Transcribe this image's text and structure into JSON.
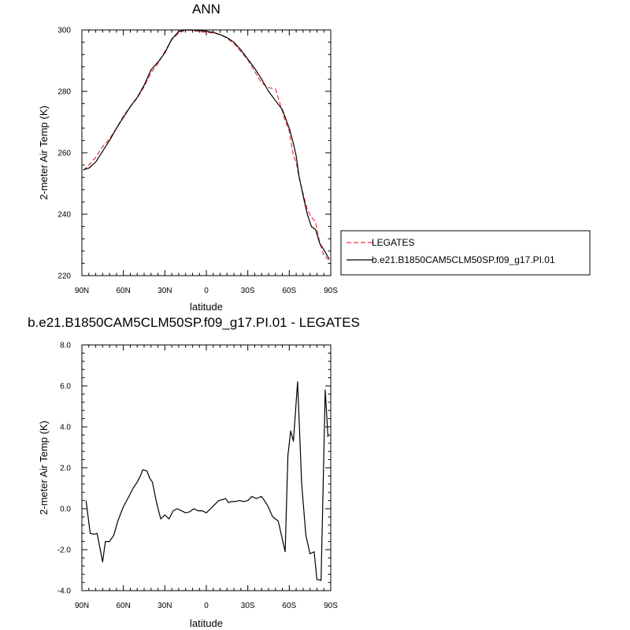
{
  "chart_data": [
    {
      "type": "line",
      "title": "ANN",
      "xlabel": "latitude",
      "ylabel": "2-meter Air Temp (K)",
      "xlim": [
        90,
        -90
      ],
      "ylim": [
        220,
        300
      ],
      "x_ticks": [
        90,
        60,
        30,
        0,
        -30,
        -60,
        -90
      ],
      "x_tick_labels": [
        "90N",
        "60N",
        "30N",
        "0",
        "30S",
        "60S",
        "90S"
      ],
      "y_ticks": [
        220,
        240,
        260,
        280,
        300
      ],
      "y_tick_labels": [
        "220",
        "240",
        "260",
        "280",
        "300"
      ],
      "legend": {
        "placement": "outside-right"
      },
      "series": [
        {
          "name": "LEGATES",
          "color": "#e8383d",
          "dash": "dashed",
          "x": [
            89,
            85,
            80,
            75,
            70,
            65,
            60,
            55,
            50,
            45,
            40,
            35,
            30,
            25,
            20,
            15,
            10,
            5,
            0,
            -5,
            -10,
            -15,
            -20,
            -25,
            -30,
            -35,
            -40,
            -45,
            -50,
            -54,
            -57,
            -60,
            -63,
            -65,
            -67,
            -70,
            -73,
            -76,
            -79,
            -82,
            -85,
            -88,
            -89
          ],
          "y": [
            254.2,
            256,
            258.5,
            262,
            264.5,
            268,
            272,
            275,
            277.8,
            281.5,
            286,
            289,
            293,
            296.8,
            299,
            300,
            299.8,
            299.4,
            299.2,
            299,
            298.5,
            297.3,
            295.5,
            293,
            290.2,
            286.5,
            282.7,
            281.2,
            280.8,
            275,
            270.5,
            267,
            259,
            257,
            252,
            246.8,
            241.5,
            239,
            237.5,
            230.7,
            226.5,
            225.3,
            225.2
          ]
        },
        {
          "name": "b.e21.B1850CAM5CLM50SP.f09_g17.PI.01",
          "color": "#000000",
          "dash": "solid",
          "x": [
            89,
            85,
            80,
            75,
            70,
            65,
            60,
            55,
            50,
            45,
            40,
            35,
            30,
            25,
            20,
            15,
            10,
            5,
            0,
            -5,
            -10,
            -15,
            -20,
            -25,
            -30,
            -35,
            -40,
            -45,
            -50,
            -55,
            -60,
            -63,
            -65,
            -67,
            -70,
            -73,
            -76,
            -79,
            -82,
            -85,
            -88,
            -89
          ],
          "y": [
            254.5,
            255,
            257,
            260.5,
            264,
            268,
            271.5,
            275,
            278,
            282,
            287,
            289.5,
            292.5,
            297,
            299.5,
            300,
            300,
            299.8,
            299.6,
            299.2,
            298.5,
            297.5,
            296,
            293.5,
            290.5,
            287.5,
            284,
            280,
            277,
            274,
            268,
            263,
            259,
            252.5,
            246,
            240,
            236,
            235,
            230.5,
            228.5,
            226,
            225.5
          ]
        }
      ]
    },
    {
      "type": "line",
      "title": "b.e21.B1850CAM5CLM50SP.f09_g17.PI.01 - LEGATES",
      "xlabel": "latitude",
      "ylabel": "2-meter Air Temp (K)",
      "xlim": [
        90,
        -90
      ],
      "ylim": [
        -4,
        8
      ],
      "x_ticks": [
        90,
        60,
        30,
        0,
        -30,
        -60,
        -90
      ],
      "x_tick_labels": [
        "90N",
        "60N",
        "30N",
        "0",
        "30S",
        "60S",
        "90S"
      ],
      "y_ticks": [
        -4,
        -2,
        0,
        2,
        4,
        6,
        8
      ],
      "y_tick_labels": [
        "-4.0",
        "-2.0",
        "0.0",
        "2.0",
        "4.0",
        "6.0",
        "8.0"
      ],
      "series": [
        {
          "color": "#000000",
          "dash": "solid",
          "x": [
            87,
            84,
            81,
            79,
            77,
            75,
            73,
            70,
            67,
            64,
            60,
            56,
            53,
            50,
            48,
            46,
            43,
            41,
            39,
            36,
            33,
            30,
            27,
            24,
            21,
            18,
            15,
            12,
            9,
            6,
            3,
            0,
            -3,
            -6,
            -9,
            -12,
            -14,
            -16,
            -18,
            -21,
            -24,
            -27,
            -30,
            -33,
            -36,
            -40,
            -44,
            -48,
            -52,
            -55,
            -57,
            -59,
            -61,
            -63,
            -66,
            -69,
            -72,
            -75,
            -78,
            -80,
            -83,
            -86,
            -88
          ],
          "y": [
            0.4,
            -1.2,
            -1.25,
            -1.2,
            -1.9,
            -2.6,
            -1.6,
            -1.6,
            -1.3,
            -0.6,
            0.1,
            0.6,
            1.0,
            1.3,
            1.55,
            1.9,
            1.85,
            1.5,
            1.3,
            0.3,
            -0.5,
            -0.3,
            -0.5,
            -0.1,
            0.0,
            -0.1,
            -0.2,
            -0.15,
            0.0,
            -0.1,
            -0.1,
            -0.2,
            0.0,
            0.2,
            0.4,
            0.45,
            0.5,
            0.3,
            0.35,
            0.35,
            0.4,
            0.35,
            0.4,
            0.6,
            0.5,
            0.6,
            0.2,
            -0.4,
            -0.6,
            -1.5,
            -2.1,
            2.6,
            3.8,
            3.3,
            6.2,
            1.2,
            -1.3,
            -2.2,
            -2.1,
            -3.45,
            -3.5,
            5.8,
            3.5
          ]
        }
      ]
    }
  ]
}
